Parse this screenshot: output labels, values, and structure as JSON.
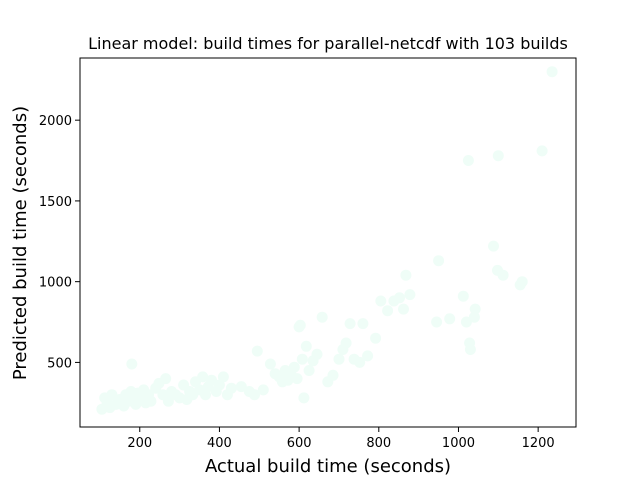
{
  "chart_data": {
    "type": "scatter",
    "title": "Linear model: build times for parallel-netcdf with 103 builds",
    "xlabel": "Actual build time (seconds)",
    "ylabel": "Predicted build time (seconds)",
    "xlim": [
      50,
      1295
    ],
    "ylim": [
      100,
      2385
    ],
    "xticks": [
      200,
      400,
      600,
      800,
      1000,
      1200
    ],
    "yticks": [
      500,
      1000,
      1500,
      2000
    ],
    "grid": false,
    "legend": "none",
    "marker_color": "#effdf7",
    "series": [
      {
        "points": [
          [
            105,
            210
          ],
          [
            112,
            280
          ],
          [
            118,
            250
          ],
          [
            125,
            220
          ],
          [
            130,
            300
          ],
          [
            140,
            240
          ],
          [
            150,
            270
          ],
          [
            160,
            230
          ],
          [
            165,
            300
          ],
          [
            172,
            260
          ],
          [
            178,
            320
          ],
          [
            180,
            490
          ],
          [
            185,
            280
          ],
          [
            190,
            240
          ],
          [
            195,
            310
          ],
          [
            200,
            270
          ],
          [
            205,
            290
          ],
          [
            210,
            330
          ],
          [
            215,
            250
          ],
          [
            222,
            300
          ],
          [
            228,
            260
          ],
          [
            240,
            340
          ],
          [
            248,
            370
          ],
          [
            258,
            300
          ],
          [
            265,
            400
          ],
          [
            272,
            260
          ],
          [
            280,
            320
          ],
          [
            290,
            300
          ],
          [
            300,
            280
          ],
          [
            310,
            360
          ],
          [
            318,
            270
          ],
          [
            325,
            320
          ],
          [
            333,
            300
          ],
          [
            340,
            380
          ],
          [
            350,
            330
          ],
          [
            358,
            410
          ],
          [
            365,
            300
          ],
          [
            372,
            350
          ],
          [
            380,
            390
          ],
          [
            392,
            320
          ],
          [
            400,
            360
          ],
          [
            410,
            410
          ],
          [
            420,
            300
          ],
          [
            430,
            340
          ],
          [
            455,
            350
          ],
          [
            475,
            320
          ],
          [
            488,
            300
          ],
          [
            495,
            570
          ],
          [
            510,
            330
          ],
          [
            528,
            490
          ],
          [
            540,
            430
          ],
          [
            550,
            410
          ],
          [
            558,
            380
          ],
          [
            565,
            450
          ],
          [
            572,
            390
          ],
          [
            580,
            420
          ],
          [
            588,
            470
          ],
          [
            595,
            400
          ],
          [
            600,
            720
          ],
          [
            603,
            730
          ],
          [
            608,
            520
          ],
          [
            612,
            280
          ],
          [
            618,
            600
          ],
          [
            625,
            450
          ],
          [
            635,
            510
          ],
          [
            645,
            550
          ],
          [
            658,
            780
          ],
          [
            672,
            380
          ],
          [
            685,
            420
          ],
          [
            700,
            520
          ],
          [
            710,
            580
          ],
          [
            718,
            620
          ],
          [
            728,
            740
          ],
          [
            738,
            520
          ],
          [
            752,
            500
          ],
          [
            760,
            740
          ],
          [
            772,
            540
          ],
          [
            792,
            650
          ],
          [
            805,
            880
          ],
          [
            822,
            820
          ],
          [
            838,
            880
          ],
          [
            852,
            900
          ],
          [
            862,
            830
          ],
          [
            868,
            1040
          ],
          [
            878,
            920
          ],
          [
            945,
            750
          ],
          [
            950,
            1130
          ],
          [
            978,
            770
          ],
          [
            1012,
            910
          ],
          [
            1020,
            750
          ],
          [
            1025,
            1750
          ],
          [
            1030,
            580
          ],
          [
            1040,
            780
          ],
          [
            1042,
            830
          ],
          [
            1088,
            1220
          ],
          [
            1098,
            1070
          ],
          [
            1100,
            1780
          ],
          [
            1112,
            1040
          ],
          [
            1155,
            980
          ],
          [
            1160,
            1000
          ],
          [
            1210,
            1810
          ],
          [
            1235,
            2300
          ],
          [
            1028,
            620
          ]
        ]
      }
    ]
  }
}
